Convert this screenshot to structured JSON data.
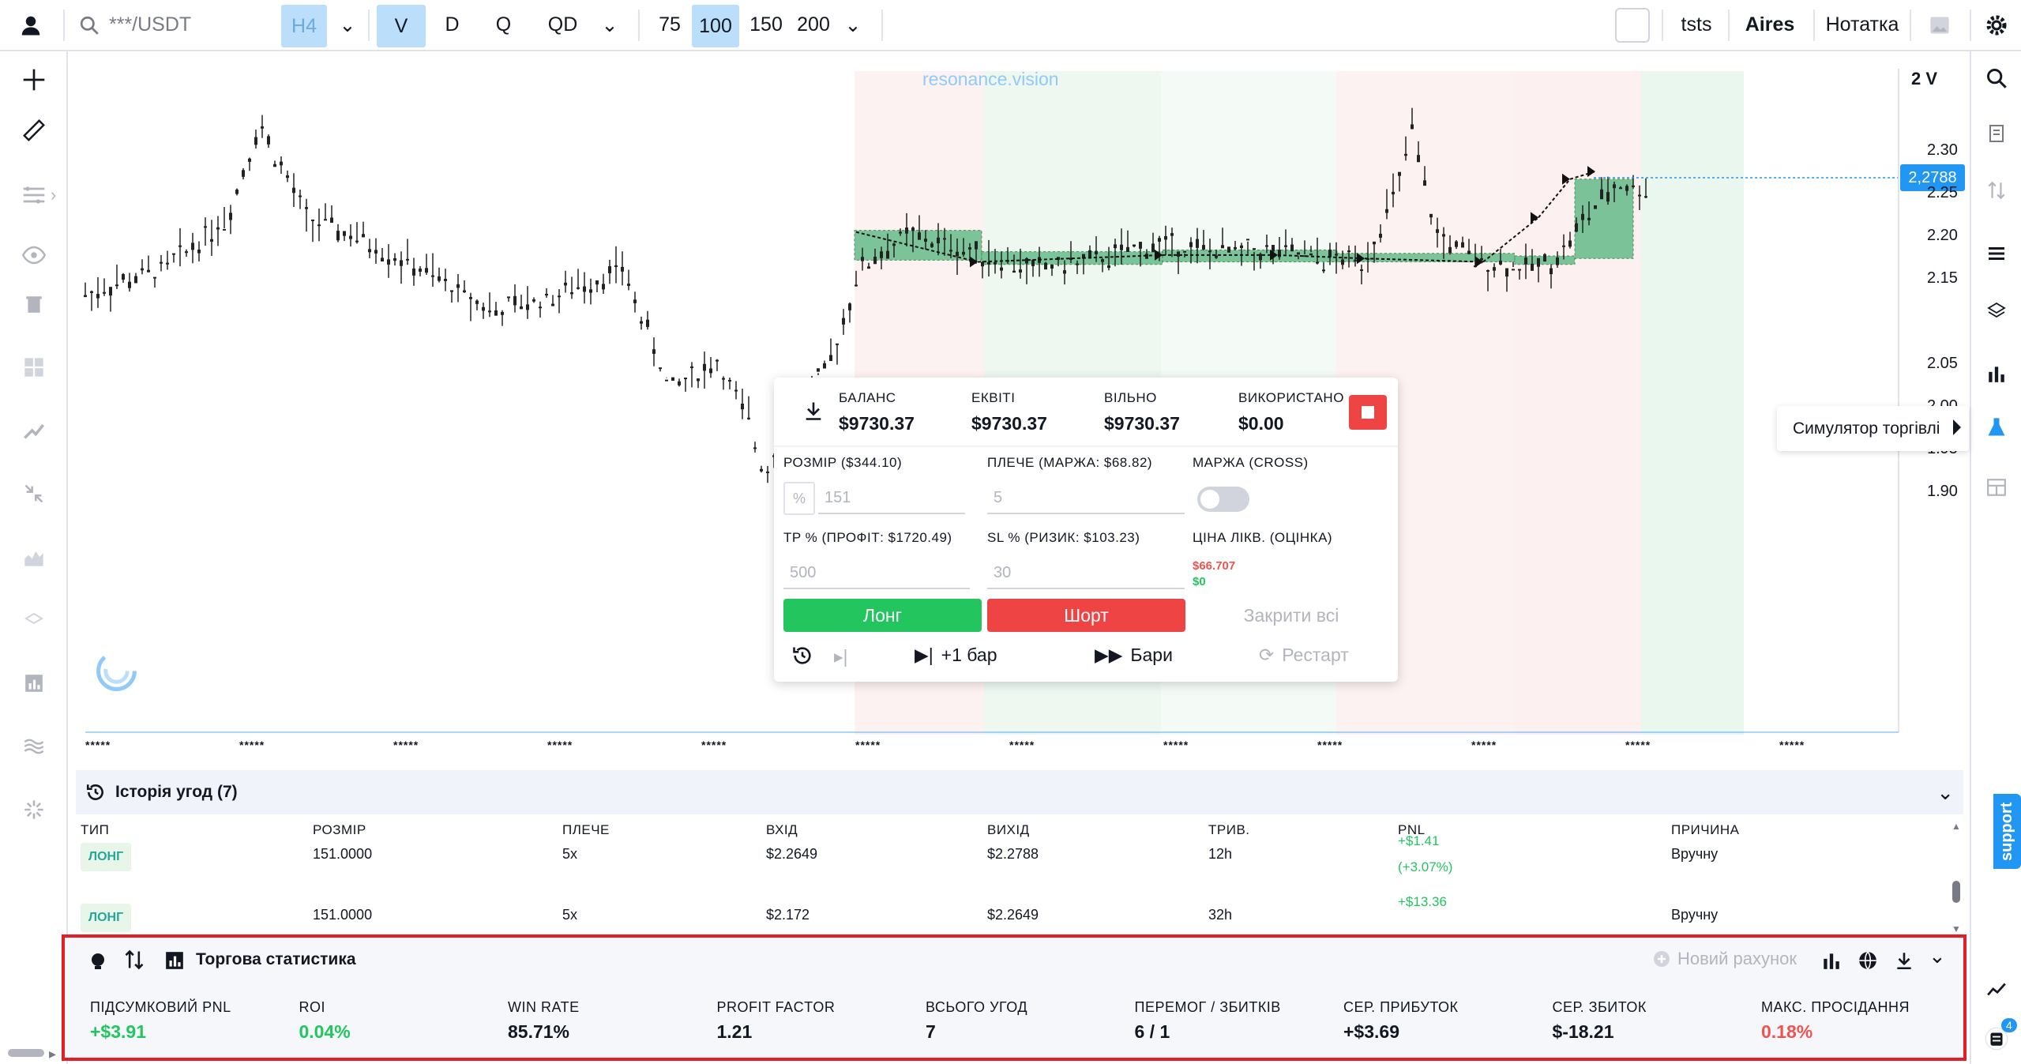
{
  "topbar": {
    "search_value": "***/USDT",
    "intervals": [
      "H4",
      "V",
      "D",
      "Q",
      "QD"
    ],
    "sizes": [
      "75",
      "100",
      "150",
      "200"
    ],
    "right_items": [
      "tsts",
      "Aires",
      "Нотатка"
    ]
  },
  "chart": {
    "watermark": "resonance.vision",
    "scale_mode": "2 V",
    "current_price": "2,2788",
    "y_ticks": [
      "2.30",
      "2.25",
      "2.20",
      "2.15",
      "2.05",
      "2.00",
      "1.95",
      "1.90"
    ],
    "x_tick_label": "*****",
    "tooltip": "Симулятор торгівлі"
  },
  "sim": {
    "balance_label": "БАЛАНС",
    "balance_value": "$9730.37",
    "equity_label": "ЕКВІТІ",
    "equity_value": "$9730.37",
    "free_label": "ВІЛЬНО",
    "free_value": "$9730.37",
    "used_label": "ВИКОРИСТАНО",
    "used_value": "$0.00",
    "size_label": "РОЗМІР ($344.10)",
    "size_unit": "%",
    "size_placeholder": "151",
    "leverage_label": "ПЛЕЧЕ (МАРЖА: $68.82)",
    "leverage_placeholder": "5",
    "margin_label": "МАРЖА (CROSS)",
    "tp_label": "TP % (ПРОФІТ: $1720.49)",
    "tp_placeholder": "500",
    "sl_label": "SL % (РИЗИК: $103.23)",
    "sl_placeholder": "30",
    "liq_label": "ЦІНА ЛІКВ. (ОЦІНКА)",
    "liq_value_1": "$66.707",
    "liq_value_2": "$0",
    "long_button": "Лонг",
    "short_button": "Шорт",
    "close_all_button": "Закрити всі",
    "plus_bar_button": "+1 бар",
    "bars_button": "Бари",
    "restart_button": "Рестарт"
  },
  "history": {
    "title": "Історія угод (7)",
    "columns": [
      "ТИП",
      "РОЗМІР",
      "ПЛЕЧЕ",
      "ВХІД",
      "ВИХІД",
      "ТРИВ.",
      "PNL",
      "ПРИЧИНА"
    ],
    "rows": [
      {
        "type": "ЛОНГ",
        "size": "151.0000",
        "leverage": "5x",
        "entry": "$2.2649",
        "exit": "$2.2788",
        "duration": "12h",
        "pnl": "+$1.41",
        "pnl_pct": "(+3.07%)",
        "reason": "Вручну"
      },
      {
        "type": "ЛОНГ",
        "size": "151.0000",
        "leverage": "5x",
        "entry": "$2.172",
        "exit": "$2.2649",
        "duration": "32h",
        "pnl": "+$13.36",
        "pnl_pct": "",
        "reason": "Вручну"
      }
    ]
  },
  "stats": {
    "title": "Торгова статистика",
    "new_account_button": "Новий рахунок",
    "items": [
      {
        "label": "ПІДСУМКОВИЙ PNL",
        "value": "+$3.91",
        "color": "green"
      },
      {
        "label": "ROI",
        "value": "0.04%",
        "color": "green"
      },
      {
        "label": "WIN RATE",
        "value": "85.71%",
        "color": ""
      },
      {
        "label": "PROFIT FACTOR",
        "value": "1.21",
        "color": ""
      },
      {
        "label": "ВСЬОГО УГОД",
        "value": "7",
        "color": ""
      },
      {
        "label": "ПЕРЕМОГ / ЗБИТКІВ",
        "value": "6 / 1",
        "color": ""
      },
      {
        "label": "СЕР. ПРИБУТОК",
        "value": "+$3.69",
        "color": ""
      },
      {
        "label": "СЕР. ЗБИТОК",
        "value": "$-18.21",
        "color": ""
      },
      {
        "label": "МАКС. ПРОСІДАННЯ",
        "value": "0.18%",
        "color": "red"
      }
    ]
  },
  "support_label": "support",
  "notifications_count": "4",
  "colors": {
    "accent": "#2196f3",
    "active_bg": "#bbdefb",
    "long": "#22c55e",
    "short": "#ef4444",
    "zone_long": "#e8f5e9",
    "zone_short": "#fdecec",
    "trade_box": "#66bb8a",
    "highlight_border": "#e31e24"
  }
}
